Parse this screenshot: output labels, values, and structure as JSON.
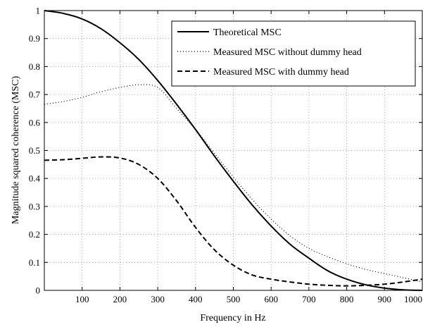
{
  "chart_data": {
    "type": "line",
    "xlabel": "Frequency in Hz",
    "ylabel": "Magnitude squared coherence (MSC)",
    "xlim": [
      0,
      1000
    ],
    "ylim": [
      0,
      1
    ],
    "xticks": [
      "100",
      "200",
      "300",
      "400",
      "500",
      "600",
      "700",
      "800",
      "900",
      "1000"
    ],
    "yticks": [
      "0",
      "0.1",
      "0.2",
      "0.3",
      "0.4",
      "0.5",
      "0.6",
      "0.7",
      "0.8",
      "0.9",
      "1"
    ],
    "grid": true,
    "legend_position": "top-right",
    "series": [
      {
        "name": "Theoretical MSC",
        "style": "solid",
        "x": [
          0,
          50,
          100,
          150,
          200,
          250,
          300,
          350,
          400,
          450,
          500,
          550,
          600,
          650,
          700,
          750,
          800,
          850,
          900,
          950,
          1000
        ],
        "y": [
          1.0,
          0.99,
          0.97,
          0.935,
          0.885,
          0.825,
          0.75,
          0.665,
          0.575,
          0.48,
          0.39,
          0.305,
          0.23,
          0.165,
          0.115,
          0.07,
          0.04,
          0.02,
          0.008,
          0.002,
          0.0
        ]
      },
      {
        "name": "Measured MSC without dummy head",
        "style": "dotted",
        "x": [
          0,
          50,
          100,
          150,
          200,
          250,
          300,
          350,
          400,
          450,
          500,
          550,
          600,
          650,
          700,
          750,
          800,
          850,
          900,
          950,
          1000
        ],
        "y": [
          0.665,
          0.675,
          0.69,
          0.71,
          0.725,
          0.735,
          0.725,
          0.65,
          0.575,
          0.49,
          0.405,
          0.325,
          0.255,
          0.195,
          0.15,
          0.12,
          0.095,
          0.075,
          0.06,
          0.045,
          0.03
        ]
      },
      {
        "name": "Measured MSC with dummy head",
        "style": "dashed",
        "x": [
          0,
          50,
          100,
          150,
          200,
          250,
          300,
          350,
          400,
          450,
          500,
          550,
          600,
          650,
          700,
          750,
          800,
          850,
          900,
          950,
          1000
        ],
        "y": [
          0.465,
          0.467,
          0.472,
          0.477,
          0.473,
          0.45,
          0.4,
          0.32,
          0.225,
          0.145,
          0.09,
          0.055,
          0.04,
          0.03,
          0.022,
          0.018,
          0.016,
          0.018,
          0.022,
          0.03,
          0.04
        ]
      }
    ]
  }
}
